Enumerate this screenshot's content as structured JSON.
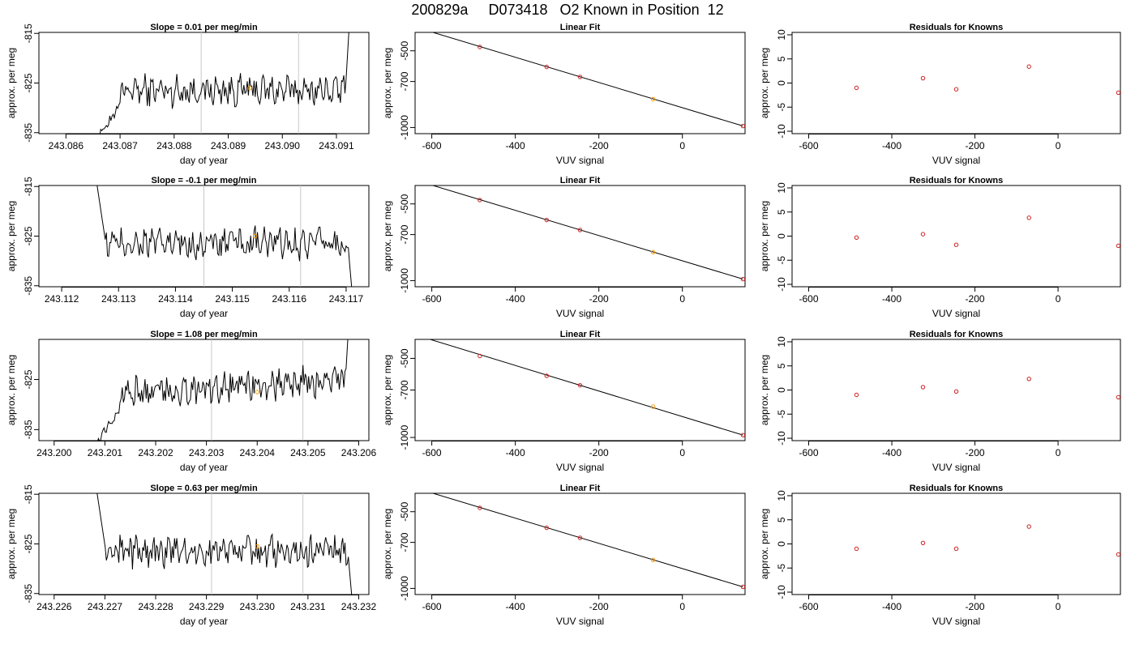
{
  "page": {
    "title": "200829a     D073418   O2 Known in Position  12"
  },
  "colors": {
    "series_line": "#000000",
    "reference_line": "#c8c8c8",
    "highlight_point": "#ff9900",
    "known_point": "#cc2222",
    "fit_line": "#000000"
  },
  "chart_data": [
    {
      "type": "line",
      "row": 0,
      "kind": "time-series",
      "title": "Slope =  0.01  per meg/min",
      "xlabel": "day of year",
      "ylabel": "approx. per meg",
      "xlim": [
        243.0855,
        243.0916
      ],
      "ylim": [
        -835.2,
        -814.8
      ],
      "xticks": [
        "243.086",
        "243.087",
        "243.088",
        "243.089",
        "243.090",
        "243.091"
      ],
      "xtick_values": [
        243.086,
        243.087,
        243.088,
        243.089,
        243.09,
        243.091
      ],
      "yticks": [
        "-835",
        "-825",
        "-815"
      ],
      "ytick_values": [
        -835,
        -825,
        -815
      ],
      "vlines": [
        243.0885,
        243.0903
      ],
      "highlight": [
        243.0894,
        -826
      ]
    },
    {
      "type": "line",
      "row": 0,
      "kind": "fit",
      "title": "Linear Fit",
      "xlabel": "VUV signal",
      "ylabel": "approx. per meg",
      "xlim": [
        -640,
        150
      ],
      "ylim": [
        -1040,
        -380
      ],
      "xticks": [
        "-600",
        "-400",
        "-200",
        "0"
      ],
      "xtick_values": [
        -600,
        -400,
        -200,
        0
      ],
      "yticks": [
        "-1000",
        "-700",
        "-500"
      ],
      "ytick_values": [
        -1000,
        -700,
        -500
      ],
      "points": [
        [
          -485,
          -475
        ],
        [
          -325,
          -605
        ],
        [
          -245,
          -670
        ],
        [
          -70,
          -815
        ],
        [
          145,
          -990
        ]
      ],
      "highlight_index": 3,
      "fit_line": [
        [
          -625,
          -357
        ],
        [
          145,
          -990
        ]
      ]
    },
    {
      "type": "scatter",
      "row": 0,
      "kind": "residuals",
      "title": "Residuals for Knowns",
      "xlabel": "VUV signal",
      "ylabel": "approx. per meg",
      "xlim": [
        -640,
        150
      ],
      "ylim": [
        -10.5,
        10.5
      ],
      "xticks": [
        "-600",
        "-400",
        "-200",
        "0"
      ],
      "xtick_values": [
        -600,
        -400,
        -200,
        0
      ],
      "yticks": [
        "-10",
        "-5",
        "0",
        "5",
        "10"
      ],
      "ytick_values": [
        -10,
        -5,
        0,
        5,
        10
      ],
      "x": [
        -485,
        -325,
        -245,
        -70,
        145
      ],
      "y": [
        -1.0,
        1.0,
        -1.3,
        3.4,
        -2.0
      ]
    },
    {
      "type": "line",
      "row": 1,
      "kind": "time-series",
      "title": "Slope =  -0.1  per meg/min",
      "xlabel": "day of year",
      "ylabel": "approx. per meg",
      "xlim": [
        243.1116,
        243.1174
      ],
      "ylim": [
        -835.2,
        -814.8
      ],
      "xticks": [
        "243.112",
        "243.113",
        "243.114",
        "243.115",
        "243.116",
        "243.117"
      ],
      "xtick_values": [
        243.112,
        243.113,
        243.114,
        243.115,
        243.116,
        243.117
      ],
      "yticks": [
        "-835",
        "-825",
        "-815"
      ],
      "ytick_values": [
        -835,
        -825,
        -815
      ],
      "vlines": [
        243.1145,
        243.1162
      ],
      "highlight": [
        243.1154,
        -825
      ]
    },
    {
      "type": "line",
      "row": 1,
      "kind": "fit",
      "title": "Linear Fit",
      "xlabel": "VUV signal",
      "ylabel": "approx. per meg",
      "xlim": [
        -640,
        150
      ],
      "ylim": [
        -1040,
        -380
      ],
      "xticks": [
        "-600",
        "-400",
        "-200",
        "0"
      ],
      "xtick_values": [
        -600,
        -400,
        -200,
        0
      ],
      "yticks": [
        "-1000",
        "-700",
        "-500"
      ],
      "ytick_values": [
        -1000,
        -700,
        -500
      ],
      "points": [
        [
          -485,
          -475
        ],
        [
          -325,
          -605
        ],
        [
          -245,
          -670
        ],
        [
          -70,
          -815
        ],
        [
          145,
          -990
        ]
      ],
      "highlight_index": 3,
      "fit_line": [
        [
          -625,
          -357
        ],
        [
          145,
          -990
        ]
      ]
    },
    {
      "type": "scatter",
      "row": 1,
      "kind": "residuals",
      "title": "Residuals for Knowns",
      "xlabel": "VUV signal",
      "ylabel": "approx. per meg",
      "xlim": [
        -640,
        150
      ],
      "ylim": [
        -10.5,
        10.5
      ],
      "xticks": [
        "-600",
        "-400",
        "-200",
        "0"
      ],
      "xtick_values": [
        -600,
        -400,
        -200,
        0
      ],
      "yticks": [
        "-10",
        "-5",
        "0",
        "5",
        "10"
      ],
      "ytick_values": [
        -10,
        -5,
        0,
        5,
        10
      ],
      "x": [
        -485,
        -325,
        -245,
        -70,
        145
      ],
      "y": [
        -0.3,
        0.4,
        -1.8,
        3.8,
        -2.0
      ]
    },
    {
      "type": "line",
      "row": 2,
      "kind": "time-series",
      "title": "Slope =  1.08  per meg/min",
      "xlabel": "day of year",
      "ylabel": "approx. per meg",
      "xlim": [
        243.1997,
        243.2062
      ],
      "ylim": [
        -837.2,
        -817
      ],
      "xticks": [
        "243.200",
        "243.201",
        "243.202",
        "243.203",
        "243.204",
        "243.205",
        "243.206"
      ],
      "xtick_values": [
        243.2,
        243.201,
        243.202,
        243.203,
        243.204,
        243.205,
        243.206
      ],
      "yticks": [
        "-835",
        "-825"
      ],
      "ytick_values": [
        -835,
        -825
      ],
      "vlines": [
        243.2031,
        243.2049
      ],
      "highlight": [
        243.204,
        -827.5
      ]
    },
    {
      "type": "line",
      "row": 2,
      "kind": "fit",
      "title": "Linear Fit",
      "xlabel": "VUV signal",
      "ylabel": "approx. per meg",
      "xlim": [
        -640,
        150
      ],
      "ylim": [
        -1020,
        -380
      ],
      "xticks": [
        "-600",
        "-400",
        "-200",
        "0"
      ],
      "xtick_values": [
        -600,
        -400,
        -200,
        0
      ],
      "yticks": [
        "-1000",
        "-700",
        "-500"
      ],
      "ytick_values": [
        -1000,
        -700,
        -500
      ],
      "points": [
        [
          -485,
          -485
        ],
        [
          -325,
          -610
        ],
        [
          -245,
          -670
        ],
        [
          -70,
          -805
        ],
        [
          145,
          -985
        ]
      ],
      "highlight_index": 3,
      "fit_line": [
        [
          -625,
          -363
        ],
        [
          145,
          -985
        ]
      ]
    },
    {
      "type": "scatter",
      "row": 2,
      "kind": "residuals",
      "title": "Residuals for Knowns",
      "xlabel": "VUV signal",
      "ylabel": "approx. per meg",
      "xlim": [
        -640,
        150
      ],
      "ylim": [
        -10.5,
        10.5
      ],
      "xticks": [
        "-600",
        "-400",
        "-200",
        "0"
      ],
      "xtick_values": [
        -600,
        -400,
        -200,
        0
      ],
      "yticks": [
        "-10",
        "-5",
        "0",
        "5",
        "10"
      ],
      "ytick_values": [
        -10,
        -5,
        0,
        5,
        10
      ],
      "x": [
        -485,
        -325,
        -245,
        -70,
        145
      ],
      "y": [
        -1.0,
        0.6,
        -0.3,
        2.3,
        -1.5
      ]
    },
    {
      "type": "line",
      "row": 3,
      "kind": "time-series",
      "title": "Slope =  0.63  per meg/min",
      "xlabel": "day of year",
      "ylabel": "approx. per meg",
      "xlim": [
        243.2257,
        243.2322
      ],
      "ylim": [
        -835.2,
        -814.8
      ],
      "xticks": [
        "243.226",
        "243.227",
        "243.228",
        "243.229",
        "243.230",
        "243.231",
        "243.232"
      ],
      "xtick_values": [
        243.226,
        243.227,
        243.228,
        243.229,
        243.23,
        243.231,
        243.232
      ],
      "yticks": [
        "-835",
        "-825",
        "-815"
      ],
      "ytick_values": [
        -835,
        -825,
        -815
      ],
      "vlines": [
        243.2291,
        243.2309
      ],
      "highlight": [
        243.23,
        -825.5
      ]
    },
    {
      "type": "line",
      "row": 3,
      "kind": "fit",
      "title": "Linear Fit",
      "xlabel": "VUV signal",
      "ylabel": "approx. per meg",
      "xlim": [
        -640,
        150
      ],
      "ylim": [
        -1040,
        -380
      ],
      "xticks": [
        "-600",
        "-400",
        "-200",
        "0"
      ],
      "xtick_values": [
        -600,
        -400,
        -200,
        0
      ],
      "yticks": [
        "-1000",
        "-700",
        "-500"
      ],
      "ytick_values": [
        -1000,
        -700,
        -500
      ],
      "points": [
        [
          -485,
          -475
        ],
        [
          -325,
          -605
        ],
        [
          -245,
          -670
        ],
        [
          -70,
          -815
        ],
        [
          145,
          -990
        ]
      ],
      "highlight_index": 3,
      "fit_line": [
        [
          -625,
          -357
        ],
        [
          145,
          -990
        ]
      ]
    },
    {
      "type": "scatter",
      "row": 3,
      "kind": "residuals",
      "title": "Residuals for Knowns",
      "xlabel": "VUV signal",
      "ylabel": "approx. per meg",
      "xlim": [
        -640,
        150
      ],
      "ylim": [
        -10.5,
        10.5
      ],
      "xticks": [
        "-600",
        "-400",
        "-200",
        "0"
      ],
      "xtick_values": [
        -600,
        -400,
        -200,
        0
      ],
      "yticks": [
        "-10",
        "-5",
        "0",
        "5",
        "10"
      ],
      "ytick_values": [
        -10,
        -5,
        0,
        5,
        10
      ],
      "x": [
        -485,
        -325,
        -245,
        -70,
        145
      ],
      "y": [
        -1.0,
        0.2,
        -1.0,
        3.6,
        -2.2
      ]
    }
  ]
}
